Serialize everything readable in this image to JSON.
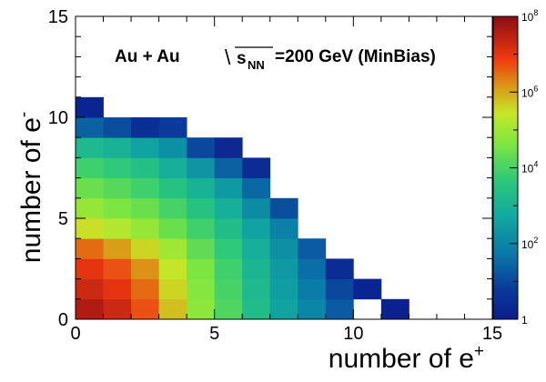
{
  "chart_data": {
    "type": "heatmap",
    "title": "",
    "annotation": {
      "system": "Au + Au",
      "sqrt_symbol": "\\",
      "s_label": "s",
      "s_subscript": "NN",
      "energy": "=200 GeV (MinBias)"
    },
    "xlabel": {
      "base": "number of e",
      "sup": "+"
    },
    "ylabel": {
      "base": "number of e",
      "sup": "-"
    },
    "xlim": [
      0,
      15
    ],
    "ylim": [
      0,
      15
    ],
    "x_ticks": [
      0,
      5,
      10,
      15
    ],
    "y_ticks": [
      0,
      5,
      10,
      15
    ],
    "x_tick_labels": [
      "0",
      "5",
      "10",
      "15"
    ],
    "y_tick_labels": [
      "0",
      "5",
      "10",
      "15"
    ],
    "bin_width": 1,
    "colorbar": {
      "scale": "log",
      "range": [
        1,
        100000000
      ],
      "ticks": [
        {
          "base": "1",
          "exp": ""
        },
        {
          "base": "10",
          "exp": "2"
        },
        {
          "base": "10",
          "exp": "4"
        },
        {
          "base": "10",
          "exp": "6"
        },
        {
          "base": "10",
          "exp": "8"
        }
      ],
      "tick_values": [
        1,
        100,
        10000,
        1000000,
        100000000
      ]
    },
    "grid": false,
    "cells_log10": [
      [
        7.6,
        7.3,
        6.7,
        5.8,
        4.8,
        4.1,
        3.3,
        2.6,
        2.0,
        1.3,
        null,
        0.1
      ],
      [
        7.3,
        7.0,
        6.5,
        5.6,
        4.7,
        4.0,
        3.2,
        2.5,
        1.8,
        1.0,
        0.2
      ],
      [
        7.0,
        6.7,
        6.2,
        5.4,
        4.6,
        3.9,
        3.1,
        2.4,
        1.6,
        0.4
      ],
      [
        6.5,
        6.1,
        5.6,
        5.0,
        4.3,
        3.7,
        2.9,
        2.2,
        1.3
      ],
      [
        5.5,
        5.2,
        4.9,
        4.4,
        3.9,
        3.3,
        2.6,
        1.9
      ],
      [
        4.9,
        4.6,
        4.4,
        4.0,
        3.5,
        2.9,
        2.1,
        1.1
      ],
      [
        4.4,
        4.2,
        3.9,
        3.5,
        3.0,
        2.4,
        1.5
      ],
      [
        3.9,
        3.7,
        3.4,
        2.9,
        2.3,
        1.4,
        0.4
      ],
      [
        3.2,
        3.0,
        2.6,
        2.2,
        1.0,
        0.3
      ],
      [
        1.4,
        1.1,
        0.5,
        0.8
      ],
      [
        0.2
      ]
    ]
  }
}
